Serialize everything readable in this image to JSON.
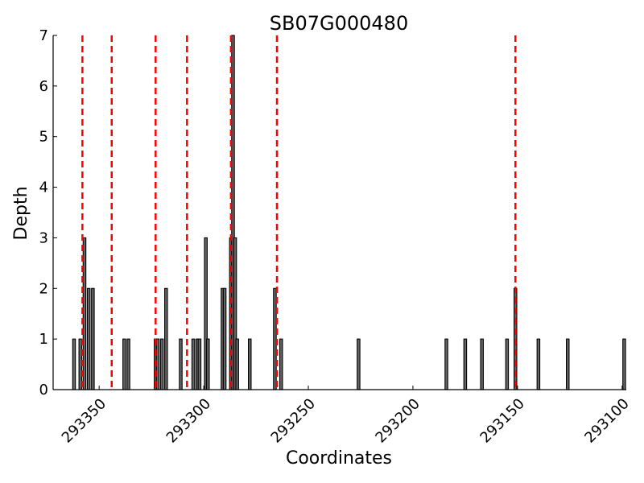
{
  "chart_data": {
    "type": "bar",
    "title": "SB07G000480",
    "xlabel": "Coordinates",
    "ylabel": "Depth",
    "xlim": [
      293372,
      293098
    ],
    "ylim": [
      0,
      7
    ],
    "x_inverted": true,
    "xticks": [
      293350,
      293300,
      293250,
      293200,
      293150,
      293100
    ],
    "yticks": [
      0,
      1,
      2,
      3,
      4,
      5,
      6,
      7
    ],
    "bar_color": "#000000",
    "bar_fill": "#666666",
    "marker_color": "#ff0000",
    "bars": [
      {
        "x": 293362,
        "value": 1
      },
      {
        "x": 293359,
        "value": 1
      },
      {
        "x": 293357,
        "value": 3
      },
      {
        "x": 293355,
        "value": 2
      },
      {
        "x": 293353,
        "value": 2
      },
      {
        "x": 293338,
        "value": 1
      },
      {
        "x": 293336,
        "value": 1
      },
      {
        "x": 293323,
        "value": 1
      },
      {
        "x": 293322,
        "value": 1
      },
      {
        "x": 293320,
        "value": 1
      },
      {
        "x": 293318,
        "value": 2
      },
      {
        "x": 293311,
        "value": 1
      },
      {
        "x": 293305,
        "value": 1
      },
      {
        "x": 293303,
        "value": 1
      },
      {
        "x": 293302,
        "value": 1
      },
      {
        "x": 293299,
        "value": 3
      },
      {
        "x": 293298,
        "value": 1
      },
      {
        "x": 293291,
        "value": 2
      },
      {
        "x": 293290,
        "value": 2
      },
      {
        "x": 293287,
        "value": 3
      },
      {
        "x": 293286,
        "value": 7
      },
      {
        "x": 293285,
        "value": 3
      },
      {
        "x": 293284,
        "value": 1
      },
      {
        "x": 293278,
        "value": 1
      },
      {
        "x": 293266,
        "value": 2
      },
      {
        "x": 293263,
        "value": 1
      },
      {
        "x": 293226,
        "value": 1
      },
      {
        "x": 293184,
        "value": 1
      },
      {
        "x": 293175,
        "value": 1
      },
      {
        "x": 293167,
        "value": 1
      },
      {
        "x": 293155,
        "value": 1
      },
      {
        "x": 293151,
        "value": 2
      },
      {
        "x": 293140,
        "value": 1
      },
      {
        "x": 293126,
        "value": 1
      },
      {
        "x": 293099,
        "value": 1
      }
    ],
    "markers": [
      293358,
      293344,
      293323,
      293308,
      293287,
      293265,
      293151
    ],
    "grid": false,
    "legend": "none"
  }
}
